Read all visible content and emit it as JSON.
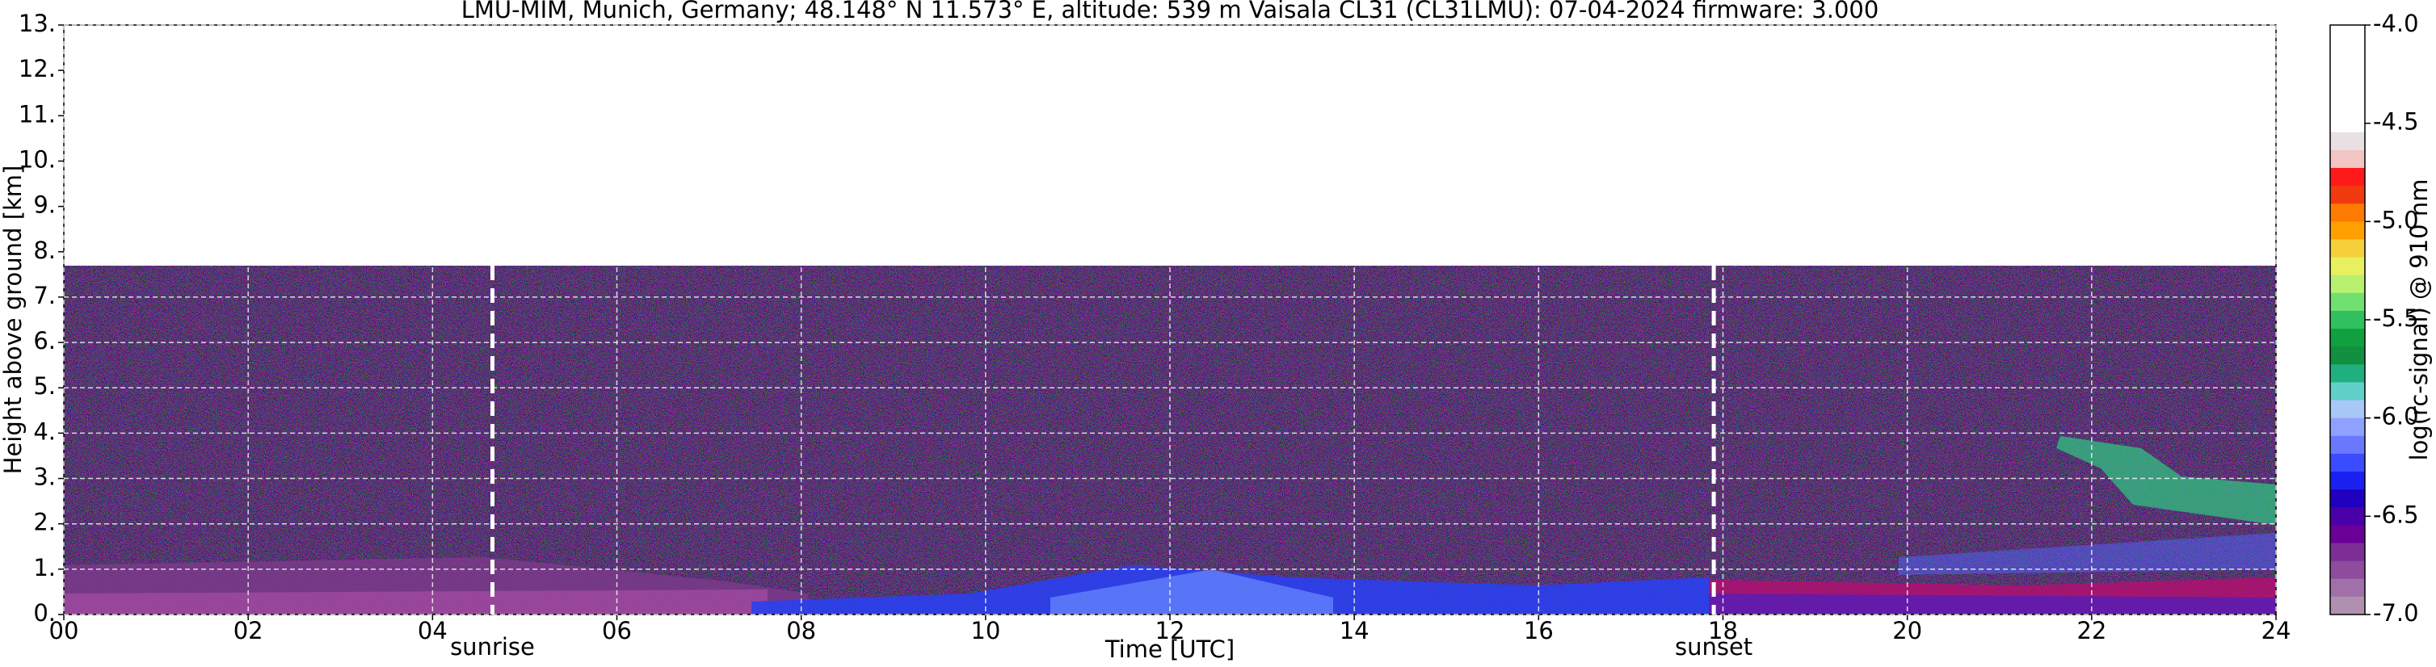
{
  "chart_data": {
    "type": "heatmap",
    "title": "LMU-MIM, Munich, Germany; 48.148° N 11.573° E, altitude: 539 m    Vaisala CL31 (CL31LMU): 07-04-2024    firmware: 3.000",
    "xlabel": "Time [UTC]",
    "ylabel": "Height above ground [km]",
    "xlim": [
      0,
      24
    ],
    "xticks": [
      {
        "value": 0,
        "label": "00"
      },
      {
        "value": 2,
        "label": "02"
      },
      {
        "value": 4,
        "label": "04"
      },
      {
        "value": 6,
        "label": "06"
      },
      {
        "value": 8,
        "label": "08"
      },
      10,
      12,
      14,
      16,
      18,
      20,
      22,
      24
    ],
    "ylim": [
      0,
      13
    ],
    "yticks": [
      {
        "value": 0,
        "label": "0."
      },
      {
        "value": 1,
        "label": "1."
      },
      {
        "value": 2,
        "label": "2."
      },
      {
        "value": 3,
        "label": "3."
      },
      {
        "value": 4,
        "label": "4."
      },
      {
        "value": 5,
        "label": "5."
      },
      {
        "value": 6,
        "label": "6."
      },
      {
        "value": 7,
        "label": "7."
      },
      {
        "value": 8,
        "label": "8."
      },
      {
        "value": 9,
        "label": "9."
      },
      {
        "value": 10,
        "label": "10."
      },
      {
        "value": 11,
        "label": "11."
      },
      {
        "value": 12,
        "label": "12."
      },
      {
        "value": 13,
        "label": "13."
      }
    ],
    "grid": true,
    "annotations": [
      {
        "text": "sunrise",
        "x": 4.65
      },
      {
        "text": "sunset",
        "x": 17.9
      }
    ],
    "colorbar": {
      "label": "log(rc-signal) @ 910 nm",
      "clim": [
        -7,
        -4
      ],
      "ticks": [
        {
          "value": -4,
          "label": "-4.0"
        },
        {
          "value": -4.5,
          "label": "-4.5"
        },
        {
          "value": -5,
          "label": "-5.0"
        },
        {
          "value": -5.5,
          "label": "-5.5"
        },
        {
          "value": -6,
          "label": "-6.0"
        },
        {
          "value": -6.5,
          "label": "-6.5"
        },
        {
          "value": -7,
          "label": "-7.0"
        }
      ],
      "colors": [
        "#ffffff",
        "#ffffff",
        "#ffffff",
        "#ffffff",
        "#ffffff",
        "#ffffff",
        "#e8e0e2",
        "#f2c4c4",
        "#ff1a1a",
        "#f03a10",
        "#ff7a00",
        "#ffa000",
        "#f5d03a",
        "#e8f060",
        "#b8f070",
        "#70e070",
        "#30c060",
        "#10a040",
        "#109040",
        "#20b080",
        "#60d0c8",
        "#a8c8f8",
        "#90a0ff",
        "#6a78ff",
        "#3a4cff",
        "#1a20f0",
        "#2000c0",
        "#4a00a8",
        "#6a0098",
        "#7c2e96",
        "#8e4c9c",
        "#a070a8",
        "#b090b0"
      ]
    }
  }
}
